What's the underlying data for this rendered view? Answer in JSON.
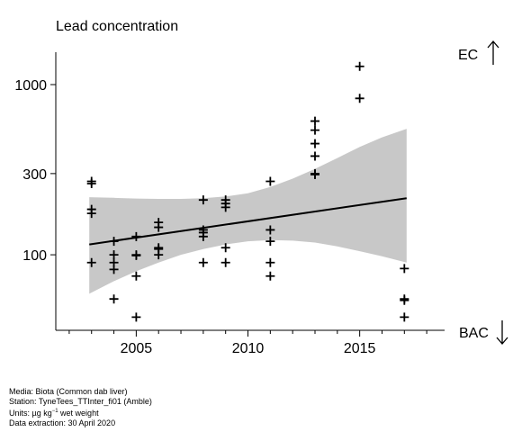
{
  "chart_data": {
    "type": "scatter",
    "title": "Lead concentration",
    "y_scale": "log",
    "ylim": [
      36,
      1550
    ],
    "xlim": [
      2001.4,
      2018.8
    ],
    "y_ticks": [
      100,
      300,
      1000
    ],
    "x_ticks": [
      2005,
      2010,
      2015
    ],
    "right_labels": {
      "top": "EC",
      "bottom": "BAC"
    },
    "points": [
      {
        "x": 2003,
        "y": 262
      },
      {
        "x": 2003,
        "y": 270
      },
      {
        "x": 2003,
        "y": 175
      },
      {
        "x": 2003,
        "y": 185
      },
      {
        "x": 2003,
        "y": 90
      },
      {
        "x": 2004,
        "y": 120
      },
      {
        "x": 2004,
        "y": 100
      },
      {
        "x": 2004,
        "y": 90
      },
      {
        "x": 2004,
        "y": 82
      },
      {
        "x": 2004,
        "y": 55
      },
      {
        "x": 2005,
        "y": 128
      },
      {
        "x": 2005,
        "y": 100
      },
      {
        "x": 2005,
        "y": 99
      },
      {
        "x": 2005,
        "y": 75
      },
      {
        "x": 2005,
        "y": 43
      },
      {
        "x": 2006,
        "y": 155
      },
      {
        "x": 2006,
        "y": 145
      },
      {
        "x": 2006,
        "y": 110
      },
      {
        "x": 2006,
        "y": 108
      },
      {
        "x": 2006,
        "y": 100
      },
      {
        "x": 2008,
        "y": 210
      },
      {
        "x": 2008,
        "y": 140
      },
      {
        "x": 2008,
        "y": 135
      },
      {
        "x": 2008,
        "y": 128
      },
      {
        "x": 2008,
        "y": 90
      },
      {
        "x": 2009,
        "y": 210
      },
      {
        "x": 2009,
        "y": 200
      },
      {
        "x": 2009,
        "y": 190
      },
      {
        "x": 2009,
        "y": 110
      },
      {
        "x": 2009,
        "y": 90
      },
      {
        "x": 2011,
        "y": 270
      },
      {
        "x": 2011,
        "y": 140
      },
      {
        "x": 2011,
        "y": 120
      },
      {
        "x": 2011,
        "y": 90
      },
      {
        "x": 2011,
        "y": 75
      },
      {
        "x": 2013,
        "y": 610
      },
      {
        "x": 2013,
        "y": 540
      },
      {
        "x": 2013,
        "y": 450
      },
      {
        "x": 2013,
        "y": 380
      },
      {
        "x": 2013,
        "y": 300
      },
      {
        "x": 2013,
        "y": 296
      },
      {
        "x": 2015,
        "y": 1280
      },
      {
        "x": 2015,
        "y": 830
      },
      {
        "x": 2017,
        "y": 83
      },
      {
        "x": 2017,
        "y": 55
      },
      {
        "x": 2017,
        "y": 54
      },
      {
        "x": 2017,
        "y": 43
      }
    ],
    "trend": {
      "x": [
        2002.9,
        2017.1
      ],
      "y": [
        115,
        215
      ]
    },
    "band": {
      "x": [
        2002.9,
        2004,
        2005,
        2006,
        2007,
        2008,
        2009,
        2010,
        2011,
        2012,
        2013,
        2014,
        2015,
        2016,
        2017.1
      ],
      "upper": [
        218,
        216,
        214,
        213,
        213,
        215,
        220,
        230,
        250,
        280,
        320,
        370,
        430,
        490,
        550
      ],
      "lower": [
        59,
        70,
        80,
        90,
        100,
        108,
        115,
        120,
        122,
        121,
        118,
        112,
        105,
        98,
        90
      ]
    }
  },
  "footer": {
    "media": "Media: Biota (Common dab liver)",
    "station": "Station: TyneTees_TTInter_fi01 (Amble)",
    "units_prefix": "Units:  µg kg",
    "units_exp": "−1",
    "units_suffix": " wet weight",
    "extraction": "Data extraction: 30 April 2020"
  }
}
